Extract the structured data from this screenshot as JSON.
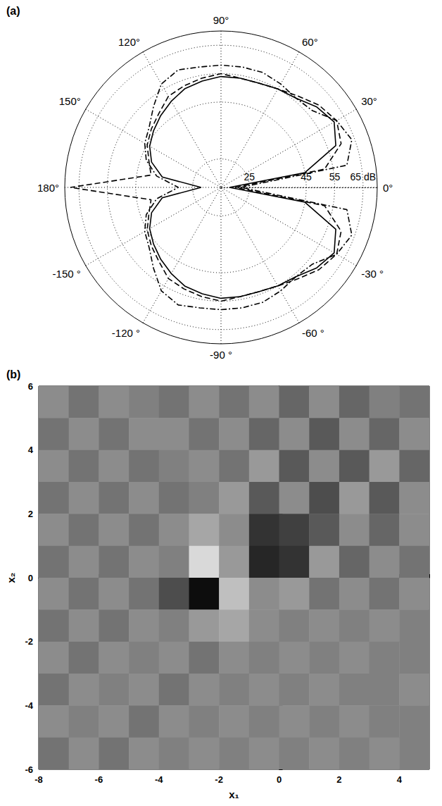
{
  "chart_data": [
    {
      "type": "polar",
      "title": "(a)",
      "grid": true,
      "theta_lim": [
        0,
        360
      ],
      "theta_ticks": [
        {
          "value": 0,
          "label": "0°"
        },
        {
          "value": 30,
          "label": "30°"
        },
        {
          "value": 60,
          "label": "60°"
        },
        {
          "value": 90,
          "label": "90°"
        },
        {
          "value": 120,
          "label": "120°"
        },
        {
          "value": 150,
          "label": "150°"
        },
        {
          "value": 180,
          "label": "180°"
        },
        {
          "value": 210,
          "label": "-150 °"
        },
        {
          "value": 240,
          "label": "-120 °"
        },
        {
          "value": 270,
          "label": "-90 °"
        },
        {
          "value": 300,
          "label": "-60 °"
        },
        {
          "value": 330,
          "label": "-30 °"
        }
      ],
      "rlim": [
        15,
        70
      ],
      "rticks": [
        25,
        45,
        55,
        {
          "value": 65,
          "label": "65 dB"
        }
      ],
      "theta": [
        0,
        10,
        20,
        30,
        40,
        50,
        60,
        70,
        80,
        90,
        100,
        110,
        120,
        130,
        140,
        150,
        160,
        170,
        180,
        190,
        200,
        210,
        220,
        230,
        240,
        250,
        260,
        270,
        280,
        290,
        300,
        310,
        320,
        330,
        340,
        350,
        360
      ],
      "series": [
        {
          "line_style": "solid",
          "color": "#000000",
          "values": [
            18,
            45,
            58,
            61,
            59,
            56,
            55,
            54,
            54,
            54,
            53,
            52,
            50,
            48,
            46,
            44,
            41,
            36,
            22,
            36,
            41,
            44,
            46,
            48,
            50,
            52,
            53,
            54,
            54,
            54,
            55,
            56,
            59,
            61,
            58,
            45,
            18
          ]
        },
        {
          "line_style": "dashed",
          "color": "#000000",
          "values": [
            20,
            52,
            60,
            62,
            60,
            57,
            55,
            54,
            54,
            55,
            54,
            53,
            52,
            49,
            47,
            45,
            42,
            40,
            68,
            40,
            42,
            45,
            47,
            49,
            52,
            53,
            54,
            55,
            54,
            54,
            55,
            57,
            60,
            62,
            60,
            52,
            20
          ]
        },
        {
          "line_style": "dashdot",
          "color": "#000000",
          "values": [
            22,
            60,
            64,
            62,
            57,
            56,
            57,
            58,
            58,
            58,
            58,
            59,
            57,
            52,
            48,
            46,
            43,
            38,
            30,
            38,
            43,
            46,
            48,
            52,
            57,
            59,
            58,
            58,
            58,
            58,
            57,
            56,
            57,
            62,
            64,
            60,
            22
          ]
        }
      ]
    },
    {
      "type": "heatmap",
      "title": "(b)",
      "grid": false,
      "x_label": "x₁",
      "y_label": "x₂",
      "xlim": [
        -8,
        5
      ],
      "ylim": [
        -6,
        6
      ],
      "xticks": [
        -8,
        -6,
        -4,
        -2,
        0,
        2,
        4
      ],
      "yticks": [
        -6,
        -4,
        -2,
        0,
        2,
        4,
        6
      ],
      "zlim": [
        -1,
        1
      ],
      "x": [
        -7.5,
        -6.5,
        -5.5,
        -4.5,
        -3.5,
        -2.5,
        -1.5,
        -0.5,
        0.5,
        1.5,
        2.5,
        3.5,
        4.5
      ],
      "y": [
        5.5,
        4.5,
        3.5,
        2.5,
        1.5,
        0.5,
        -0.5,
        -1.5,
        -2.5,
        -3.5,
        -4.5,
        -5.5
      ],
      "cells": [
        [
          0.1,
          -0.1,
          0.1,
          0.0,
          -0.1,
          0.1,
          -0.1,
          0.1,
          -0.2,
          0.1,
          -0.2,
          0.0,
          -0.1
        ],
        [
          -0.1,
          0.1,
          -0.1,
          0.1,
          0.1,
          -0.1,
          0.1,
          -0.2,
          0.1,
          -0.3,
          0.1,
          -0.2,
          0.1
        ],
        [
          0.1,
          -0.1,
          0.1,
          -0.1,
          0.0,
          0.1,
          -0.1,
          0.2,
          -0.3,
          0.1,
          -0.3,
          0.2,
          -0.2
        ],
        [
          -0.1,
          0.1,
          -0.1,
          0.1,
          -0.1,
          0.0,
          0.2,
          -0.3,
          0.1,
          -0.4,
          0.2,
          -0.3,
          0.1
        ],
        [
          0.1,
          -0.1,
          0.1,
          -0.1,
          0.1,
          0.3,
          0.1,
          -0.6,
          -0.5,
          -0.3,
          0.1,
          -0.2,
          0.1
        ],
        [
          -0.1,
          0.1,
          -0.1,
          0.1,
          0.0,
          0.7,
          0.2,
          -0.7,
          -0.6,
          0.2,
          -0.2,
          0.1,
          -0.1
        ],
        [
          0.1,
          -0.1,
          0.1,
          -0.1,
          -0.4,
          -0.9,
          0.5,
          0.1,
          0.2,
          -0.1,
          0.1,
          -0.1,
          0.1
        ],
        [
          -0.1,
          0.1,
          -0.1,
          0.1,
          0.0,
          0.2,
          0.3,
          0.1,
          0.0,
          0.1,
          0.0,
          0.1,
          0.0
        ],
        [
          0.1,
          -0.1,
          0.1,
          0.0,
          0.1,
          -0.1,
          0.1,
          0.0,
          0.1,
          0.0,
          0.1,
          0.0,
          0.0
        ],
        [
          -0.1,
          0.1,
          0.0,
          0.1,
          -0.1,
          0.1,
          0.0,
          0.1,
          0.0,
          0.1,
          0.0,
          0.0,
          0.1
        ],
        [
          0.1,
          0.0,
          0.1,
          -0.1,
          0.1,
          0.0,
          0.1,
          0.0,
          0.1,
          0.0,
          0.1,
          0.0,
          0.0
        ],
        [
          -0.1,
          0.1,
          -0.1,
          0.1,
          0.0,
          0.1,
          0.0,
          0.1,
          0.0,
          0.1,
          0.0,
          0.1,
          0.0
        ]
      ]
    }
  ]
}
